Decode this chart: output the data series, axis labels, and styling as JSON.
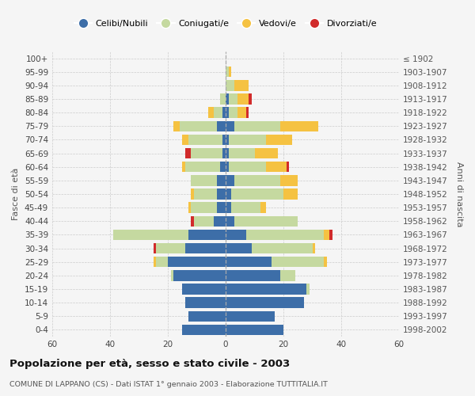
{
  "age_groups": [
    "0-4",
    "5-9",
    "10-14",
    "15-19",
    "20-24",
    "25-29",
    "30-34",
    "35-39",
    "40-44",
    "45-49",
    "50-54",
    "55-59",
    "60-64",
    "65-69",
    "70-74",
    "75-79",
    "80-84",
    "85-89",
    "90-94",
    "95-99",
    "100+"
  ],
  "birth_years": [
    "1998-2002",
    "1993-1997",
    "1988-1992",
    "1983-1987",
    "1978-1982",
    "1973-1977",
    "1968-1972",
    "1963-1967",
    "1958-1962",
    "1953-1957",
    "1948-1952",
    "1943-1947",
    "1938-1942",
    "1933-1937",
    "1928-1932",
    "1923-1927",
    "1918-1922",
    "1913-1917",
    "1908-1912",
    "1903-1907",
    "≤ 1902"
  ],
  "colors": {
    "celibe": "#3d6ea8",
    "coniugato": "#c5d9a0",
    "vedovo": "#f5c242",
    "divorziato": "#d12b2b"
  },
  "male": {
    "celibe": [
      15,
      13,
      14,
      15,
      18,
      20,
      14,
      13,
      4,
      3,
      3,
      3,
      2,
      1,
      1,
      3,
      1,
      0,
      0,
      0,
      0
    ],
    "coniugato": [
      0,
      0,
      0,
      0,
      1,
      4,
      10,
      26,
      7,
      9,
      8,
      9,
      12,
      11,
      12,
      13,
      3,
      2,
      0,
      0,
      0
    ],
    "vedovo": [
      0,
      0,
      0,
      0,
      0,
      1,
      0,
      0,
      0,
      1,
      1,
      0,
      1,
      0,
      2,
      2,
      2,
      0,
      0,
      0,
      0
    ],
    "divorziato": [
      0,
      0,
      0,
      0,
      0,
      0,
      1,
      0,
      1,
      0,
      0,
      0,
      0,
      2,
      0,
      0,
      0,
      0,
      0,
      0,
      0
    ]
  },
  "female": {
    "nubile": [
      20,
      17,
      27,
      28,
      19,
      16,
      9,
      7,
      3,
      2,
      2,
      3,
      1,
      1,
      1,
      3,
      1,
      1,
      0,
      0,
      0
    ],
    "coniugata": [
      0,
      0,
      0,
      1,
      5,
      18,
      21,
      27,
      22,
      10,
      18,
      16,
      13,
      9,
      13,
      16,
      3,
      3,
      3,
      1,
      0
    ],
    "vedova": [
      0,
      0,
      0,
      0,
      0,
      1,
      1,
      2,
      0,
      2,
      5,
      6,
      7,
      8,
      9,
      13,
      3,
      4,
      5,
      1,
      0
    ],
    "divorziata": [
      0,
      0,
      0,
      0,
      0,
      0,
      0,
      1,
      0,
      0,
      0,
      0,
      1,
      0,
      0,
      0,
      1,
      1,
      0,
      0,
      0
    ]
  },
  "xlim": 60,
  "title": "Popolazione per età, sesso e stato civile - 2003",
  "subtitle": "COMUNE DI LAPPANO (CS) - Dati ISTAT 1° gennaio 2003 - Elaborazione TUTTITALIA.IT",
  "ylabel_left": "Fasce di età",
  "ylabel_right": "Anni di nascita",
  "legend_labels": [
    "Celibi/Nubili",
    "Coniugati/e",
    "Vedovi/e",
    "Divorziati/e"
  ],
  "bg_color": "#f5f5f5",
  "grid_color": "#cccccc"
}
